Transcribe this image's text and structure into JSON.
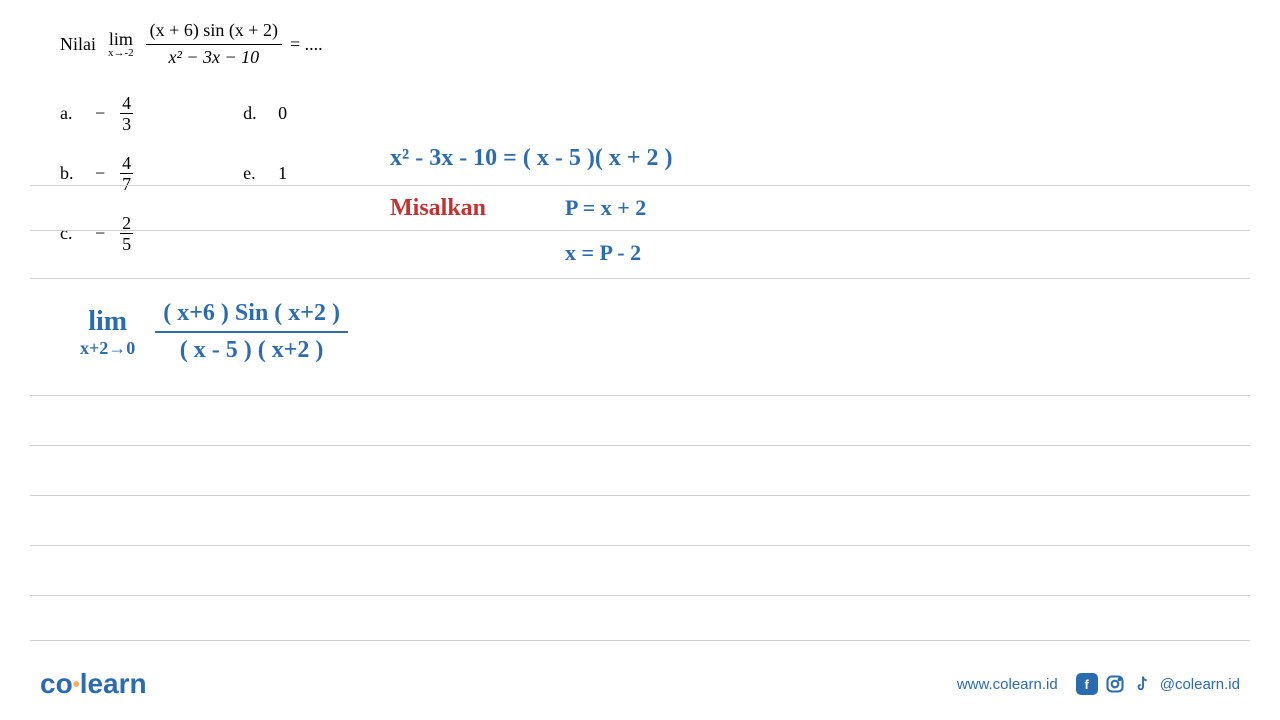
{
  "question": {
    "prefix": "Nilai",
    "limit_label": "lim",
    "limit_sub": "x→-2",
    "numerator": "(x + 6) sin (x + 2)",
    "denominator": "x² − 3x − 10",
    "suffix": "= ...."
  },
  "options": {
    "a": {
      "label": "a.",
      "sign": "−",
      "num": "4",
      "den": "3"
    },
    "b": {
      "label": "b.",
      "sign": "−",
      "num": "4",
      "den": "7"
    },
    "c": {
      "label": "c.",
      "sign": "−",
      "num": "2",
      "den": "5"
    },
    "d": {
      "label": "d.",
      "value": "0"
    },
    "e": {
      "label": "e.",
      "value": "1"
    }
  },
  "work": {
    "factoring": "x² - 3x - 10 = ( x - 5 )( x + 2 )",
    "misalkan": "Misalkan",
    "sub1": "P = x + 2",
    "sub2": "x = P - 2",
    "lim": "lim",
    "lim_sub": "x+2→0",
    "lim_num": "( x+6 )  Sin ( x+2 )",
    "lim_den": "( x - 5 )   ( x+2 )"
  },
  "styling": {
    "blue": "#2b6cb0",
    "red": "#c53030",
    "line_color": "#d0d0d0",
    "text_color": "#000000",
    "hw_fontsize": 24,
    "print_fontsize": 18
  },
  "lines": [
    185,
    230,
    278,
    395,
    445,
    495,
    545,
    595,
    640
  ],
  "footer": {
    "logo_co": "co",
    "logo_learn": "learn",
    "url": "www.colearn.id",
    "handle": "@colearn.id"
  }
}
